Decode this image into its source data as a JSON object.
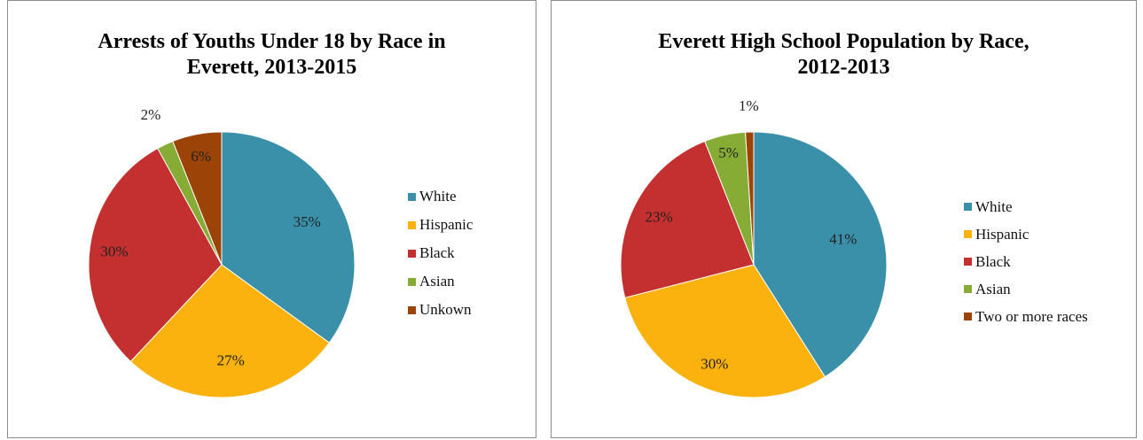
{
  "chart_data": [
    {
      "type": "pie",
      "title_lines": [
        "Arrests of Youths Under 18 by Race in",
        "Everett, 2013-2015"
      ],
      "categories": [
        "White",
        "Hispanic",
        "Black",
        "Asian",
        "Unkown"
      ],
      "values": [
        35,
        27,
        30,
        2,
        6
      ],
      "labels": [
        "35%",
        "27%",
        "30%",
        "2%",
        "6%"
      ],
      "colors": [
        "#3a90a8",
        "#fbb20f",
        "#c4302f",
        "#86ac36",
        "#9c4408"
      ],
      "legend_position": "right"
    },
    {
      "type": "pie",
      "title_lines": [
        "Everett High School Population by Race,",
        "2012-2013"
      ],
      "categories": [
        "White",
        "Hispanic",
        "Black",
        "Asian",
        "Two or more races"
      ],
      "values": [
        41,
        30,
        23,
        5,
        1
      ],
      "labels": [
        "41%",
        "30%",
        "23%",
        "5%",
        "1%"
      ],
      "colors": [
        "#3a90a8",
        "#fbb20f",
        "#c4302f",
        "#86ac36",
        "#9c4408"
      ],
      "legend_position": "right"
    }
  ]
}
